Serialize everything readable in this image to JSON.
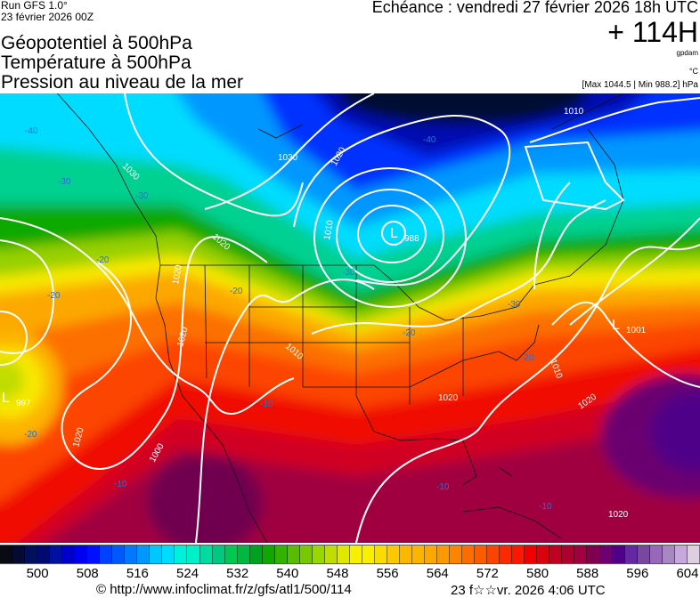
{
  "header": {
    "run": "Run GFS 1.0°",
    "run_date": "23 février 2026 00Z",
    "titles": [
      "Géopotentiel à 500hPa",
      "Température à 500hPa",
      "Pression au niveau de la mer"
    ],
    "echeance": "Echéance : vendredi 27 février 2026 18h UTC",
    "lead": "+ 114H",
    "unit_geo": "gpdam",
    "unit_temp": "°C",
    "pressure_range": "[Max 1044.5 | Min 988.2] hPa"
  },
  "map": {
    "lows": [
      {
        "letter": "L",
        "value": "988"
      },
      {
        "letter": "L",
        "value": "1001"
      },
      {
        "letter": "L",
        "value": "997"
      }
    ],
    "isobar_labels": [
      "1010",
      "1030",
      "1030",
      "1020",
      "1020",
      "1010",
      "1020",
      "1020",
      "1020",
      "1010",
      "1020",
      "1020",
      "1020",
      "1010",
      "1020",
      "1000"
    ],
    "temp_labels": [
      "-40",
      "-30",
      "-20",
      "-20",
      "-30",
      "-20",
      "-40",
      "-30",
      "-20",
      "-20",
      "-10",
      "-10",
      "-10",
      "-10",
      "-20",
      "-30"
    ]
  },
  "colorbar": {
    "colors": [
      "#0a0a14",
      "#050a30",
      "#00105a",
      "#000a6e",
      "#0010a0",
      "#0000c8",
      "#0000f0",
      "#0010ff",
      "#0040ff",
      "#0058ff",
      "#0078ff",
      "#0098ff",
      "#00c8ff",
      "#00dcff",
      "#00f0dc",
      "#00f0c8",
      "#00dca0",
      "#00c880",
      "#00c850",
      "#00b840",
      "#00a020",
      "#10a800",
      "#30b400",
      "#58bc00",
      "#78c800",
      "#98d800",
      "#c0dc00",
      "#e0e800",
      "#f8f000",
      "#f8f000",
      "#fcdc00",
      "#fcc800",
      "#fcb800",
      "#fcb400",
      "#fca800",
      "#fc9800",
      "#fc8400",
      "#fc6c00",
      "#fc5c00",
      "#fc4400",
      "#fc2800",
      "#fc1800",
      "#f00000",
      "#dc0010",
      "#c00020",
      "#b00030",
      "#a00040",
      "#800050",
      "#6c0070",
      "#500088",
      "#6428a0",
      "#7848a0",
      "#9868b8",
      "#a888c0",
      "#c8a8dc",
      "#dcd0e0"
    ],
    "labels": [
      "500",
      "508",
      "516",
      "524",
      "532",
      "540",
      "548",
      "556",
      "564",
      "572",
      "580",
      "588",
      "596",
      "604"
    ]
  },
  "footer": {
    "source": "© http://www.infoclimat.fr/z/gfs/atl1/500/114",
    "generated": "23 f☆☆vr. 2026  4:06 UTC"
  }
}
